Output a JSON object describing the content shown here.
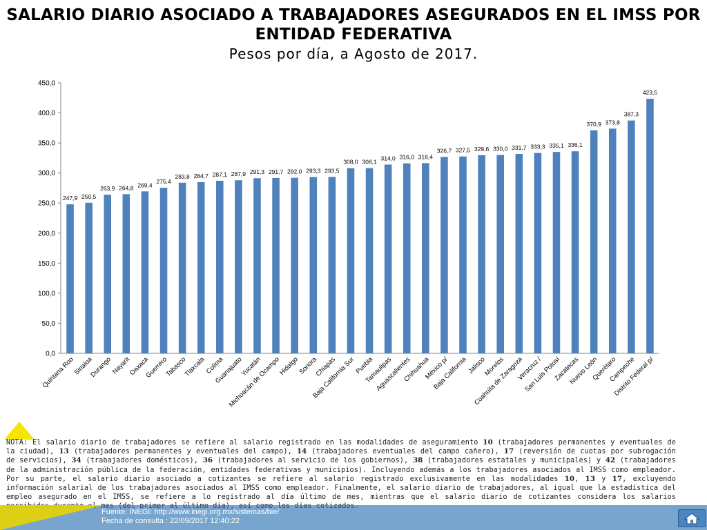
{
  "title": "SALARIO DIARIO ASOCIADO A TRABAJADORES ASEGURADOS EN EL IMSS POR ENTIDAD FEDERATIVA",
  "subtitle": "Pesos por día, a Agosto de 2017.",
  "chart_data": {
    "type": "bar",
    "title": "SALARIO DIARIO ASOCIADO A TRABAJADORES ASEGURADOS EN EL IMSS POR ENTIDAD FEDERATIVA",
    "subtitle": "Pesos por día, a Agosto de 2017.",
    "xlabel": "",
    "ylabel": "",
    "ylim": [
      0,
      450
    ],
    "yticks": [
      0,
      50,
      100,
      150,
      200,
      250,
      300,
      350,
      400,
      450
    ],
    "ytick_labels": [
      "0,0",
      "50,0",
      "100,0",
      "150,0",
      "200,0",
      "250,0",
      "300,0",
      "350,0",
      "400,0",
      "450,0"
    ],
    "grid": false,
    "legend": "none",
    "bar_color": "#4f81bd",
    "categories": [
      "Quintana Roo",
      "Sinaloa",
      "Durango",
      "Nayarit",
      "Oaxaca",
      "Guerrero",
      "Tabasco",
      "Tlaxcala",
      "Colima",
      "Guanajuato",
      "Yucatán",
      "Michoacán de Ocampo",
      "Hidalgo",
      "Sonora",
      "Chiapas",
      "Baja California Sur",
      "Puebla",
      "Tamaulipas",
      "Aguascalientes",
      "Chihuahua",
      "México p/",
      "Baja California",
      "Jalisco",
      "Morelos",
      "Coahuila de Zaragoza",
      "Veracruz /",
      "San Luis Potosí",
      "Zacatecas",
      "Nuevo León",
      "Querétaro",
      "Campeche",
      "Distrito Federal p/"
    ],
    "values": [
      247.9,
      250.5,
      263.9,
      264.8,
      269.4,
      275.4,
      283.8,
      284.7,
      287.1,
      287.9,
      291.3,
      291.7,
      292.0,
      293.3,
      293.5,
      308.0,
      308.1,
      314.0,
      316.0,
      316.4,
      326.7,
      327.5,
      329.6,
      330.0,
      331.7,
      333.3,
      335.1,
      336.1,
      370.9,
      373.8,
      387.3,
      423.5
    ],
    "value_labels": [
      "247,9",
      "250,5",
      "263,9",
      "264,8",
      "269,4",
      "275,4",
      "283,8",
      "284,7",
      "287,1",
      "287,9",
      "291,3",
      "291,7",
      "292,0",
      "293,3",
      "293,5",
      "308,0",
      "308,1",
      "314,0",
      "316,0",
      "316,4",
      "326,7",
      "327,5",
      "329,6",
      "330,0",
      "331,7",
      "333,3",
      "335,1",
      "336,1",
      "370,9",
      "373,8",
      "387,3",
      "423,5"
    ]
  },
  "note": {
    "segments": [
      {
        "t": "NOTA: El salario diario de trabajadores se refiere al salario registrado en las modalidades de aseguramiento ",
        "b": false
      },
      {
        "t": "10",
        "b": true
      },
      {
        "t": " (trabajadores permanentes y eventuales de la ciudad), ",
        "b": false
      },
      {
        "t": "13",
        "b": true
      },
      {
        "t": " (trabajadores permanentes y eventuales del campo), ",
        "b": false
      },
      {
        "t": "14",
        "b": true
      },
      {
        "t": " (trabajadores eventuales del campo cañero), ",
        "b": false
      },
      {
        "t": "17",
        "b": true
      },
      {
        "t": " (reversión de cuotas por subrogación de servicios), ",
        "b": false
      },
      {
        "t": "34",
        "b": true
      },
      {
        "t": " (trabajadores domésticos), ",
        "b": false
      },
      {
        "t": "36",
        "b": true
      },
      {
        "t": " (trabajadores al servicio de los gobiernos), ",
        "b": false
      },
      {
        "t": "38",
        "b": true
      },
      {
        "t": " (trabajadores estatales y municipales) y ",
        "b": false
      },
      {
        "t": "42",
        "b": true
      },
      {
        "t": " (trabajadores de la administración pública de la federación, entidades federativas y municipios). Incluyendo además a los trabajadores asociados al IMSS como empleador. Por su parte, el salario diario asociado a cotizantes se refiere al salario registrado exclusivamente en las modalidades ",
        "b": false
      },
      {
        "t": "10",
        "b": true
      },
      {
        "t": ", ",
        "b": false
      },
      {
        "t": "13",
        "b": true
      },
      {
        "t": " y ",
        "b": false
      },
      {
        "t": "17",
        "b": true
      },
      {
        "t": ", excluyendo información salarial de los trabajadores asociados al IMSS como empleador. Finalmente, el salario diario de trabajadores, al igual que la estadística del empleo asegurado en el IMSS, se refiere a lo registrado al día último de mes, mientras que el salario diario de cotizantes considera los salarios percibidos durante el mes (del primer al último día), así como los días cotizados.",
        "b": false
      }
    ]
  },
  "footer": {
    "source_line": "Fuente: INEGI: http://www.inegi.org.mx/sistemas/bie/",
    "date_line": "Fecha de consulta : 22/09/2017 12:40:22"
  },
  "icons": {
    "home": "home-icon",
    "corner": "triangle-corner-icon"
  },
  "colors": {
    "bar": "#4f81bd",
    "footer": "#3b7fc0",
    "accent": "#f5e500"
  }
}
